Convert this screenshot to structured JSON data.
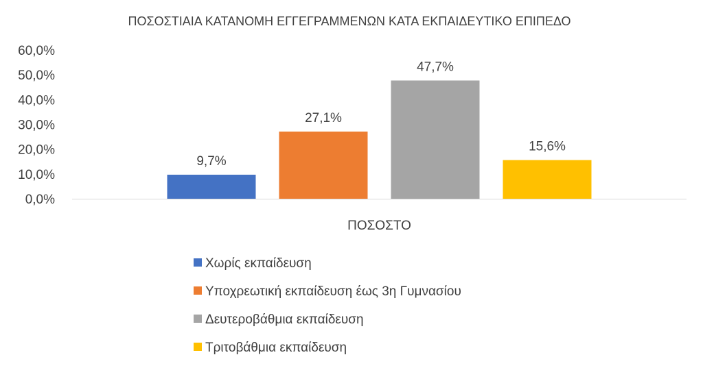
{
  "chart_data": {
    "type": "bar",
    "title": "ΠΟΣΟΣΤΙΑΙΑ ΚΑΤΑΝΟΜΗ ΕΓΓΕΓΡΑΜΜΕΝΩΝ ΚΑΤΑ ΕΚΠΑΙΔΕΥΤΙΚΟ ΕΠΙΠΕΔΟ",
    "categories": [
      "ΠΟΣΟΣΤΟ"
    ],
    "ylim": [
      0,
      60
    ],
    "y_ticks": [
      {
        "value": 0,
        "label": "0,0%"
      },
      {
        "value": 10,
        "label": "10,0%"
      },
      {
        "value": 20,
        "label": "20,0%"
      },
      {
        "value": 30,
        "label": "30,0%"
      },
      {
        "value": 40,
        "label": "40,0%"
      },
      {
        "value": 50,
        "label": "50,0%"
      },
      {
        "value": 60,
        "label": "60,0%"
      }
    ],
    "series": [
      {
        "name": "Χωρίς εκπαίδευση",
        "values": [
          9.7
        ],
        "data_labels": [
          "9,7%"
        ],
        "color": "#4472C4"
      },
      {
        "name": "Υποχρεωτική εκπαίδευση έως 3η Γυμνασίου",
        "values": [
          27.1
        ],
        "data_labels": [
          "27,1%"
        ],
        "color": "#ED7D31"
      },
      {
        "name": "Δευτεροβάθμια εκπαίδευση",
        "values": [
          47.7
        ],
        "data_labels": [
          "47,7%"
        ],
        "color": "#A5A5A5"
      },
      {
        "name": "Τριτοβάθμια εκπαίδευση",
        "values": [
          15.6
        ],
        "data_labels": [
          "15,6%"
        ],
        "color": "#FFC000"
      }
    ],
    "grid": false,
    "legend_position": "bottom"
  }
}
